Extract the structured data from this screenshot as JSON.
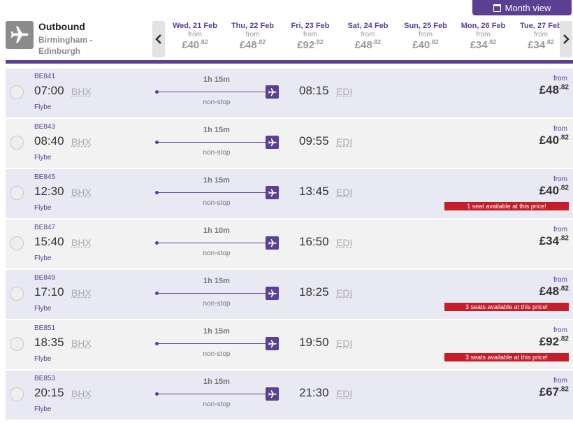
{
  "month_view": {
    "label": "Month view"
  },
  "outbound": {
    "title": "Outbound",
    "route": "Birmingham - Edinburgh"
  },
  "dates": [
    {
      "label": "Wed, 21 Feb",
      "from": "from",
      "price_main": "£40",
      "price_pence": ".82"
    },
    {
      "label": "Thu, 22 Feb",
      "from": "from",
      "price_main": "£48",
      "price_pence": ".82"
    },
    {
      "label": "Fri, 23 Feb",
      "from": "from",
      "price_main": "£92",
      "price_pence": ".82"
    },
    {
      "label": "Sat, 24 Feb",
      "from": "from",
      "price_main": "£48",
      "price_pence": ".82"
    },
    {
      "label": "Sun, 25 Feb",
      "from": "from",
      "price_main": "£40",
      "price_pence": ".82"
    },
    {
      "label": "Mon, 26 Feb",
      "from": "from",
      "price_main": "£34",
      "price_pence": ".82"
    },
    {
      "label": "Tue, 27 Feb",
      "from": "from",
      "price_main": "£34",
      "price_pence": ".82"
    }
  ],
  "flights": [
    {
      "number": "BE841",
      "dep_time": "07:00",
      "dep_code": "BHX",
      "carrier": "Flybe",
      "duration": "1h 15m",
      "stops": "non-stop",
      "arr_time": "08:15",
      "arr_code": "EDI",
      "price_from": "from",
      "price_main": "£48",
      "price_pence": ".82",
      "seat_note": ""
    },
    {
      "number": "BE843",
      "dep_time": "08:40",
      "dep_code": "BHX",
      "carrier": "Flybe",
      "duration": "1h 15m",
      "stops": "non-stop",
      "arr_time": "09:55",
      "arr_code": "EDI",
      "price_from": "from",
      "price_main": "£40",
      "price_pence": ".82",
      "seat_note": ""
    },
    {
      "number": "BE845",
      "dep_time": "12:30",
      "dep_code": "BHX",
      "carrier": "Flybe",
      "duration": "1h 15m",
      "stops": "non-stop",
      "arr_time": "13:45",
      "arr_code": "EDI",
      "price_from": "from",
      "price_main": "£40",
      "price_pence": ".82",
      "seat_note": "1 seat available at this price!"
    },
    {
      "number": "BE847",
      "dep_time": "15:40",
      "dep_code": "BHX",
      "carrier": "Flybe",
      "duration": "1h 10m",
      "stops": "non-stop",
      "arr_time": "16:50",
      "arr_code": "EDI",
      "price_from": "from",
      "price_main": "£34",
      "price_pence": ".82",
      "seat_note": ""
    },
    {
      "number": "BE849",
      "dep_time": "17:10",
      "dep_code": "BHX",
      "carrier": "Flybe",
      "duration": "1h 15m",
      "stops": "non-stop",
      "arr_time": "18:25",
      "arr_code": "EDI",
      "price_from": "from",
      "price_main": "£48",
      "price_pence": ".82",
      "seat_note": "3 seats available at this price!"
    },
    {
      "number": "BE851",
      "dep_time": "18:35",
      "dep_code": "BHX",
      "carrier": "Flybe",
      "duration": "1h 15m",
      "stops": "non-stop",
      "arr_time": "19:50",
      "arr_code": "EDI",
      "price_from": "from",
      "price_main": "£92",
      "price_pence": ".82",
      "seat_note": "3 seats available at this price!"
    },
    {
      "number": "BE853",
      "dep_time": "20:15",
      "dep_code": "BHX",
      "carrier": "Flybe",
      "duration": "1h 15m",
      "stops": "non-stop",
      "arr_time": "21:30",
      "arr_code": "EDI",
      "price_from": "from",
      "price_main": "£67",
      "price_pence": ".82",
      "seat_note": ""
    }
  ],
  "colors": {
    "brand": "#5b3f92",
    "alert": "#c41e2a"
  }
}
